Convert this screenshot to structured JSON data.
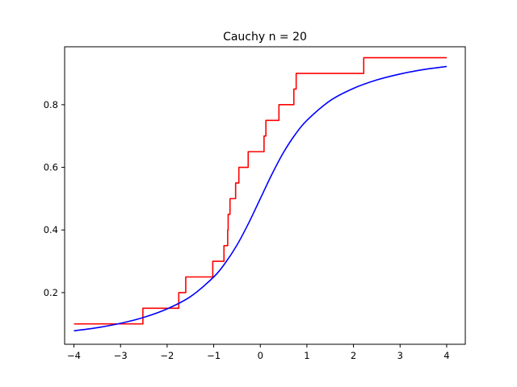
{
  "chart_data": {
    "type": "line",
    "title": "Cauchy n = 20",
    "xlabel": "",
    "ylabel": "",
    "xlim": [
      -4.2,
      4.4
    ],
    "ylim": [
      0.035,
      0.985
    ],
    "grid": false,
    "x_ticks": [
      -4,
      -3,
      -2,
      -1,
      0,
      1,
      2,
      3,
      4
    ],
    "x_tick_labels": [
      "−4",
      "−3",
      "−2",
      "−1",
      "0",
      "1",
      "2",
      "3",
      "4"
    ],
    "y_ticks": [
      0.2,
      0.4,
      0.6,
      0.8
    ],
    "y_tick_labels": [
      "0.2",
      "0.4",
      "0.6",
      "0.8"
    ],
    "series": [
      {
        "kind": "step",
        "color": "#ff0000",
        "x_range": [
          -4,
          4
        ],
        "start_value": 0.1,
        "jumps": [
          {
            "x": -2.52,
            "y": 0.15
          },
          {
            "x": -1.75,
            "y": 0.2
          },
          {
            "x": -1.6,
            "y": 0.25
          },
          {
            "x": -1.02,
            "y": 0.3
          },
          {
            "x": -0.78,
            "y": 0.35
          },
          {
            "x": -0.7,
            "y": 0.4
          },
          {
            "x": -0.69,
            "y": 0.45
          },
          {
            "x": -0.65,
            "y": 0.5
          },
          {
            "x": -0.53,
            "y": 0.55
          },
          {
            "x": -0.46,
            "y": 0.6
          },
          {
            "x": -0.26,
            "y": 0.65
          },
          {
            "x": 0.08,
            "y": 0.7
          },
          {
            "x": 0.12,
            "y": 0.75
          },
          {
            "x": 0.4,
            "y": 0.8
          },
          {
            "x": 0.72,
            "y": 0.85
          },
          {
            "x": 0.77,
            "y": 0.9
          },
          {
            "x": 2.22,
            "y": 0.95
          }
        ]
      },
      {
        "kind": "curve",
        "color": "#0000ff",
        "x_range": [
          -4,
          4
        ],
        "x": [
          -4,
          -3.5,
          -3,
          -2.5,
          -2,
          -1.5,
          -1,
          -0.75,
          -0.5,
          -0.25,
          0,
          0.25,
          0.5,
          0.75,
          1,
          1.5,
          2,
          2.5,
          3,
          3.5,
          4
        ],
        "y": [
          0.078,
          0.088,
          0.102,
          0.121,
          0.148,
          0.187,
          0.25,
          0.295,
          0.352,
          0.422,
          0.5,
          0.578,
          0.648,
          0.705,
          0.75,
          0.813,
          0.852,
          0.879,
          0.898,
          0.912,
          0.922
        ]
      }
    ]
  }
}
